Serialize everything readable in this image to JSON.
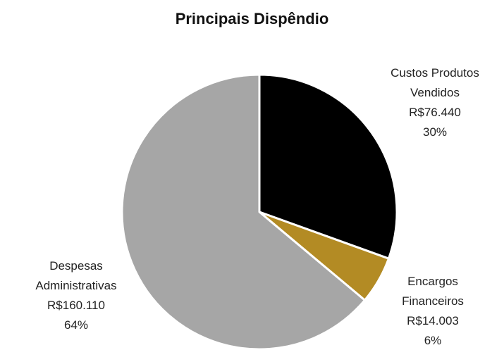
{
  "chart_data": {
    "type": "pie",
    "title": "Principais Dispêndio",
    "categories": [
      "Custos Produtos Vendidos",
      "Encargos Financeiros",
      "Despesas Administrativas"
    ],
    "values": [
      76440,
      14003,
      160110
    ],
    "value_labels": [
      "R$76.440",
      "R$14.003",
      "R$160.110"
    ],
    "percent_labels": [
      "30%",
      "6%",
      "64%"
    ],
    "colors": [
      "#000000",
      "#b38b24",
      "#a6a6a6"
    ]
  }
}
